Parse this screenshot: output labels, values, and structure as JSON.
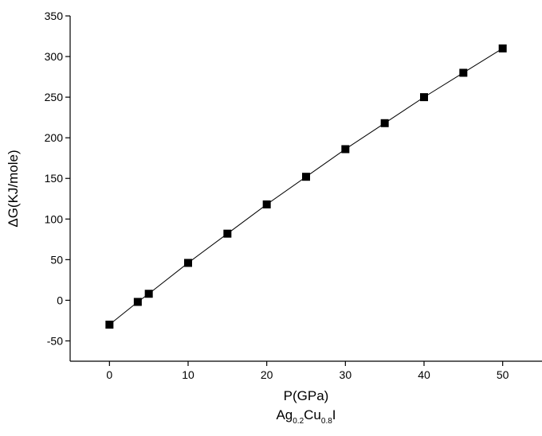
{
  "chart_data": {
    "type": "line",
    "x_label": "P(GPa)",
    "y_label": "ΔG(KJ/mole)",
    "subtitle": [
      {
        "text": "Ag",
        "sub": false
      },
      {
        "text": "0.2",
        "sub": true
      },
      {
        "text": "Cu",
        "sub": false
      },
      {
        "text": "0.8",
        "sub": true
      },
      {
        "text": "I",
        "sub": false
      }
    ],
    "x": [
      0,
      3.6,
      5,
      10,
      15,
      20,
      25,
      30,
      35,
      40,
      45,
      50
    ],
    "values": [
      -30,
      -2,
      8,
      46,
      82,
      118,
      152,
      186,
      218,
      250,
      280,
      310
    ],
    "color": "#000000",
    "marker": "square",
    "xlim": [
      -5,
      55
    ],
    "xticks": [
      0,
      10,
      20,
      30,
      40,
      50
    ],
    "ylim": [
      -75,
      350
    ],
    "yticks": [
      -50,
      0,
      50,
      100,
      150,
      200,
      250,
      300,
      350
    ],
    "grid": false
  }
}
